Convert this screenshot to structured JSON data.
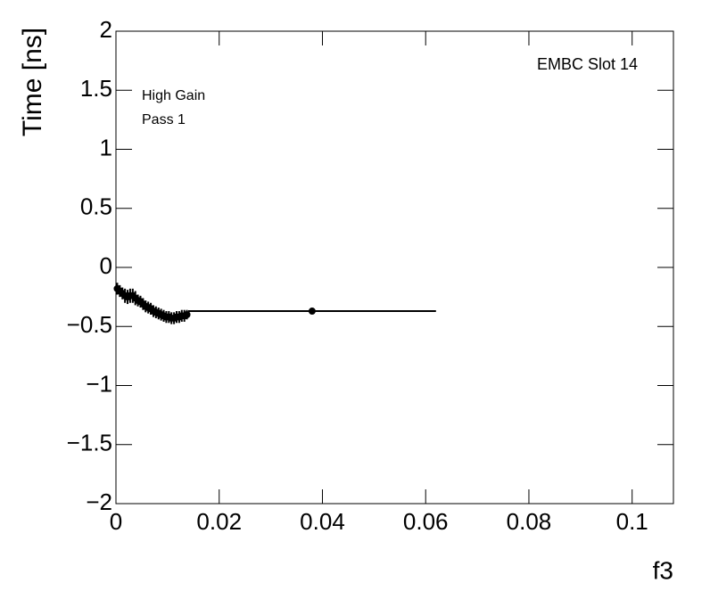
{
  "chart_data": {
    "type": "errorbar",
    "ylabel": "Time [ns]",
    "xlabel": "f3",
    "annotations": [
      "EMBC Slot 14",
      "High Gain",
      "Pass 1"
    ],
    "xlim": [
      0,
      0.108
    ],
    "ylim": [
      -2,
      2
    ],
    "xticks": [
      0,
      0.02,
      0.04,
      0.06,
      0.08,
      0.1
    ],
    "yticks": [
      {
        "value": -2,
        "label": "−2"
      },
      {
        "value": -1.5,
        "label": "−1.5"
      },
      {
        "value": -1,
        "label": "−1"
      },
      {
        "value": -0.5,
        "label": "−0.5"
      },
      0,
      0.5,
      1,
      1.5,
      2
    ],
    "color": "#000000",
    "x": [
      0.00025,
      0.00075,
      0.00125,
      0.00175,
      0.00225,
      0.00275,
      0.00325,
      0.00375,
      0.00425,
      0.00475,
      0.00525,
      0.00575,
      0.00625,
      0.00675,
      0.00725,
      0.00775,
      0.00825,
      0.00875,
      0.00925,
      0.00975,
      0.01025,
      0.01075,
      0.01125,
      0.01175,
      0.01225,
      0.01275,
      0.01325,
      0.01375,
      0.038
    ],
    "xerr": [
      0.00025,
      0.00025,
      0.00025,
      0.00025,
      0.00025,
      0.00025,
      0.00025,
      0.00025,
      0.00025,
      0.00025,
      0.00025,
      0.00025,
      0.00025,
      0.00025,
      0.00025,
      0.00025,
      0.00025,
      0.00025,
      0.00025,
      0.00025,
      0.00025,
      0.00025,
      0.00025,
      0.00025,
      0.00025,
      0.00025,
      0.00025,
      0.00025,
      0.024
    ],
    "y": [
      -0.18,
      -0.2,
      -0.22,
      -0.24,
      -0.25,
      -0.24,
      -0.24,
      -0.26,
      -0.28,
      -0.29,
      -0.31,
      -0.33,
      -0.34,
      -0.35,
      -0.37,
      -0.38,
      -0.39,
      -0.4,
      -0.41,
      -0.42,
      -0.42,
      -0.43,
      -0.43,
      -0.42,
      -0.42,
      -0.41,
      -0.41,
      -0.4,
      -0.37
    ],
    "yerr": [
      0.05,
      0.05,
      0.05,
      0.06,
      0.06,
      0.06,
      0.06,
      0.06,
      0.05,
      0.05,
      0.05,
      0.05,
      0.05,
      0.05,
      0.05,
      0.05,
      0.05,
      0.05,
      0.05,
      0.05,
      0.05,
      0.05,
      0.05,
      0.05,
      0.05,
      0.05,
      0.05,
      0.04,
      0.01
    ]
  }
}
